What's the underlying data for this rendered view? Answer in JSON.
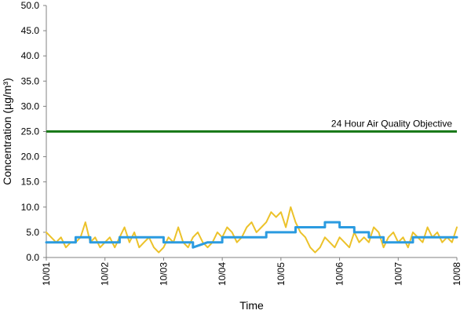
{
  "chart_data": {
    "type": "line",
    "xlabel": "Time",
    "ylabel": "Concentration (µg/m³)",
    "ylim": [
      0,
      50
    ],
    "y_ticks": [
      "0.0",
      "5.0",
      "10.0",
      "15.0",
      "20.0",
      "25.0",
      "30.0",
      "35.0",
      "40.0",
      "45.0",
      "50.0"
    ],
    "x_ticks": [
      "10/01",
      "10/02",
      "10/03",
      "10/04",
      "10/05",
      "10/06",
      "10/07",
      "10/08"
    ],
    "xlim_days": [
      0,
      7
    ],
    "grid": false,
    "legend": "none",
    "reference_line": {
      "value": 25,
      "label": "24 Hour Air Quality Objective",
      "color": "#1a7a1a"
    },
    "series": [
      {
        "color": "#ecc22a",
        "x": [
          0,
          0.083,
          0.167,
          0.25,
          0.333,
          0.417,
          0.5,
          0.583,
          0.667,
          0.75,
          0.833,
          0.917,
          1.0,
          1.083,
          1.167,
          1.25,
          1.333,
          1.417,
          1.5,
          1.583,
          1.667,
          1.75,
          1.833,
          1.917,
          2.0,
          2.083,
          2.167,
          2.25,
          2.333,
          2.417,
          2.5,
          2.583,
          2.667,
          2.75,
          2.833,
          2.917,
          3.0,
          3.083,
          3.167,
          3.25,
          3.333,
          3.417,
          3.5,
          3.583,
          3.667,
          3.75,
          3.833,
          3.917,
          4.0,
          4.083,
          4.167,
          4.25,
          4.333,
          4.417,
          4.5,
          4.583,
          4.667,
          4.75,
          4.833,
          4.917,
          5.0,
          5.083,
          5.167,
          5.25,
          5.333,
          5.417,
          5.5,
          5.583,
          5.667,
          5.75,
          5.833,
          5.917,
          6.0,
          6.083,
          6.167,
          6.25,
          6.333,
          6.417,
          6.5,
          6.583,
          6.667,
          6.75,
          6.833,
          6.917,
          7.0
        ],
        "values": [
          5,
          4,
          3,
          4,
          2,
          3,
          3,
          4,
          7,
          3,
          4,
          2,
          3,
          4,
          2,
          4,
          6,
          3,
          5,
          2,
          3,
          4,
          2,
          1,
          2,
          4,
          3,
          6,
          3,
          2,
          4,
          5,
          3,
          2,
          3,
          5,
          4,
          6,
          5,
          3,
          4,
          6,
          7,
          5,
          6,
          7,
          9,
          8,
          9,
          6,
          10,
          7,
          5,
          4,
          2,
          1,
          2,
          4,
          3,
          2,
          4,
          3,
          2,
          5,
          3,
          4,
          3,
          6,
          5,
          2,
          4,
          5,
          3,
          4,
          2,
          5,
          4,
          3,
          6,
          4,
          5,
          3,
          4,
          3,
          6
        ]
      },
      {
        "color": "#2b9be0",
        "x": [
          0,
          0.5,
          0.5,
          0.75,
          0.75,
          1.0,
          1.0,
          1.25,
          1.25,
          1.5,
          1.5,
          1.75,
          1.75,
          2.0,
          2.0,
          2.25,
          2.25,
          2.5,
          2.5,
          2.75,
          2.75,
          3.0,
          3.0,
          3.25,
          3.25,
          3.5,
          3.5,
          3.75,
          3.75,
          4.0,
          4.0,
          4.25,
          4.25,
          4.5,
          4.5,
          4.75,
          4.75,
          5.0,
          5.0,
          5.25,
          5.25,
          5.5,
          5.5,
          5.75,
          5.75,
          6.0,
          6.0,
          6.25,
          6.25,
          6.5,
          6.5,
          6.75,
          6.75,
          7.0
        ],
        "values": [
          3,
          3,
          4,
          4,
          3,
          3,
          3,
          3,
          4,
          4,
          4,
          4,
          4,
          4,
          3,
          3,
          3,
          3,
          2,
          3,
          3,
          3,
          4,
          4,
          4,
          4,
          4,
          4,
          5,
          5,
          5,
          5,
          6,
          6,
          6,
          6,
          7,
          7,
          6,
          6,
          5,
          5,
          4,
          4,
          3,
          3,
          3,
          3,
          4,
          4,
          4,
          4,
          4,
          4
        ]
      }
    ]
  }
}
